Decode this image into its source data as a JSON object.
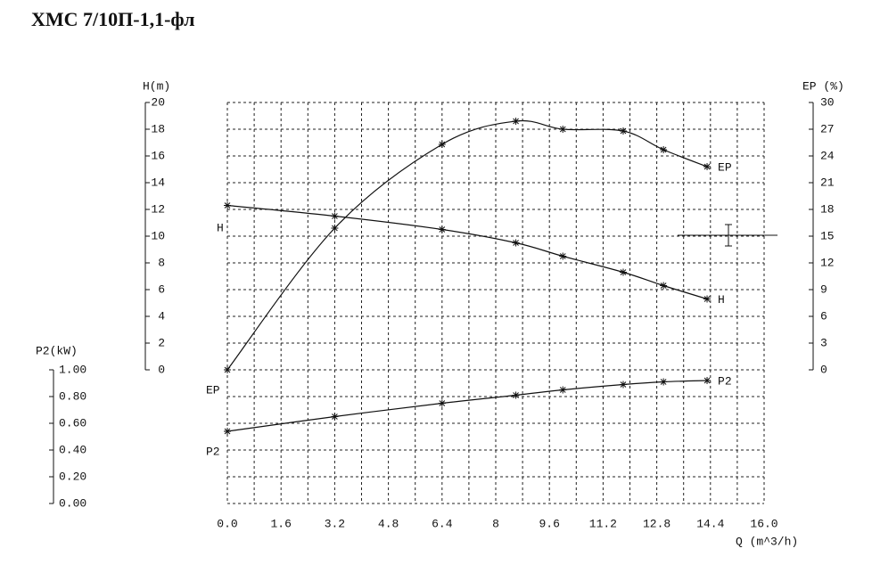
{
  "chart_data": {
    "type": "line",
    "title": "XMC 7/10П-1,1-фл",
    "x_label": "Q (m^3/h)",
    "y_label": "H(m)",
    "y2_label": "EP (%)",
    "y3_label": "P2(kW)",
    "x": [
      0,
      3.2,
      6.4,
      8.6,
      10.0,
      11.8,
      13.0,
      14.3
    ],
    "xlim": [
      0,
      16
    ],
    "xticks": [
      {
        "value": 0,
        "label": "0.0"
      },
      1.6,
      3.2,
      4.8,
      6.4,
      8.0,
      9.6,
      11.2,
      12.8,
      14.4,
      {
        "value": 16,
        "label": "16.0"
      }
    ],
    "ylim": [
      0,
      20
    ],
    "yticks": [
      0,
      2,
      4,
      6,
      8,
      10,
      12,
      14,
      16,
      18,
      20
    ],
    "y2lim": [
      0,
      30
    ],
    "y2ticks": [
      0,
      3,
      6,
      9,
      12,
      15,
      18,
      21,
      24,
      27,
      30
    ],
    "y3lim": [
      0,
      1
    ],
    "y3ticks": [
      {
        "value": 0,
        "label": "0.00"
      },
      {
        "value": 0.2,
        "label": "0.20"
      },
      {
        "value": 0.4,
        "label": "0.40"
      },
      {
        "value": 0.6,
        "label": "0.60"
      },
      {
        "value": 0.8,
        "label": "0.80"
      },
      {
        "value": 1,
        "label": "1.00"
      }
    ],
    "grid": true,
    "series": [
      {
        "name": "H",
        "color": "#111111",
        "axis": "y",
        "values": [
          12.3,
          11.5,
          10.5,
          9.5,
          8.5,
          7.3,
          6.3,
          5.3
        ]
      },
      {
        "name": "EP",
        "color": "#111111",
        "axis": "y2",
        "values": [
          0,
          15.9,
          25.3,
          27.9,
          27.0,
          26.8,
          24.7,
          22.8
        ]
      },
      {
        "name": "P2",
        "color": "#111111",
        "axis": "y3",
        "values": [
          0.54,
          0.65,
          0.75,
          0.81,
          0.85,
          0.89,
          0.91,
          0.92
        ]
      }
    ]
  }
}
